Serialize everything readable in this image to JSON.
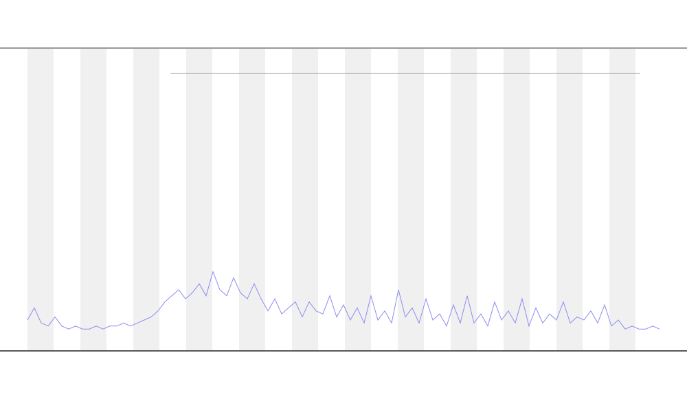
{
  "chart_data": {
    "type": "line",
    "series": [
      {
        "color": "#8c8cf0",
        "values": [
          10,
          14,
          9,
          8,
          11,
          8,
          7,
          8,
          7,
          7,
          8,
          7,
          8,
          8,
          9,
          8,
          9,
          10,
          11,
          13,
          16,
          18,
          20,
          17,
          19,
          22,
          18,
          26,
          20,
          18,
          24,
          19,
          17,
          22,
          17,
          13,
          17,
          12,
          14,
          16,
          11,
          16,
          13,
          12,
          18,
          11,
          15,
          10,
          14,
          9,
          18,
          10,
          13,
          9,
          20,
          11,
          14,
          9,
          17,
          10,
          12,
          8,
          15,
          9,
          18,
          9,
          12,
          8,
          16,
          10,
          13,
          9,
          17,
          8,
          14,
          9,
          12,
          10,
          16,
          9,
          11,
          10,
          13,
          9,
          15,
          8,
          10,
          7,
          8,
          7,
          7,
          8,
          7
        ]
      }
    ],
    "ylim": [
      0,
      100
    ]
  }
}
